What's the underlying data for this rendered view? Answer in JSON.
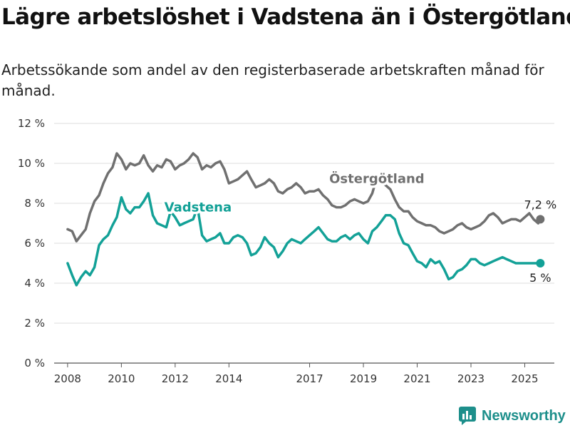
{
  "header": {
    "title": "Lägre arbetslöshet i Vadstena än i Östergötland",
    "subtitle": "Arbetssökande som andel av den registerbaserade arbetskraften månad för månad."
  },
  "brand": {
    "name": "Newsworthy",
    "icon": "newsworthy-logo-icon",
    "color": "#1d8f8b"
  },
  "chart_data": {
    "type": "line",
    "title": "",
    "xlabel": "",
    "ylabel": "",
    "xlim": [
      2007.5,
      2026.1
    ],
    "ylim": [
      0,
      12
    ],
    "y_ticks": [
      0,
      2,
      4,
      6,
      8,
      10,
      12
    ],
    "y_tick_labels": [
      "0 %",
      "2 %",
      "4 %",
      "6 %",
      "8 %",
      "10 %",
      "12 %"
    ],
    "x_ticks": [
      2008,
      2010,
      2012,
      2014,
      2017,
      2019,
      2021,
      2023,
      2025
    ],
    "x_tick_labels": [
      "2008",
      "2010",
      "2012",
      "2014",
      "2017",
      "2019",
      "2021",
      "2023",
      "2025"
    ],
    "grid": "horizontal",
    "legend": "inline labels",
    "series": [
      {
        "name": "Östergötland",
        "color": "#707070",
        "end_label": "7,2 %",
        "x": [
          2008.0,
          2008.17,
          2008.33,
          2008.5,
          2008.67,
          2008.83,
          2009.0,
          2009.17,
          2009.33,
          2009.5,
          2009.67,
          2009.83,
          2010.0,
          2010.17,
          2010.33,
          2010.5,
          2010.67,
          2010.83,
          2011.0,
          2011.17,
          2011.33,
          2011.5,
          2011.67,
          2011.83,
          2012.0,
          2012.17,
          2012.33,
          2012.5,
          2012.67,
          2012.83,
          2013.0,
          2013.17,
          2013.33,
          2013.5,
          2013.67,
          2013.83,
          2014.0,
          2014.17,
          2014.33,
          2014.5,
          2014.67,
          2014.83,
          2015.0,
          2015.17,
          2015.33,
          2015.5,
          2015.67,
          2015.83,
          2016.0,
          2016.17,
          2016.33,
          2016.5,
          2016.67,
          2016.83,
          2017.0,
          2017.17,
          2017.33,
          2017.5,
          2017.67,
          2017.83,
          2018.0,
          2018.17,
          2018.33,
          2018.5,
          2018.67,
          2018.83,
          2019.0,
          2019.17,
          2019.33,
          2019.5,
          2019.67,
          2019.83,
          2020.0,
          2020.17,
          2020.33,
          2020.5,
          2020.67,
          2020.83,
          2021.0,
          2021.17,
          2021.33,
          2021.5,
          2021.67,
          2021.83,
          2022.0,
          2022.17,
          2022.33,
          2022.5,
          2022.67,
          2022.83,
          2023.0,
          2023.17,
          2023.33,
          2023.5,
          2023.67,
          2023.83,
          2024.0,
          2024.17,
          2024.33,
          2024.5,
          2024.67,
          2024.83,
          2025.0,
          2025.17,
          2025.33,
          2025.5,
          2025.58
        ],
        "values": [
          6.7,
          6.6,
          6.1,
          6.4,
          6.7,
          7.5,
          8.1,
          8.4,
          9.0,
          9.5,
          9.8,
          10.5,
          10.2,
          9.7,
          10.0,
          9.9,
          10.0,
          10.4,
          9.9,
          9.6,
          9.9,
          9.8,
          10.2,
          10.1,
          9.7,
          9.9,
          10.0,
          10.2,
          10.5,
          10.3,
          9.7,
          9.9,
          9.8,
          10.0,
          10.1,
          9.7,
          9.0,
          9.1,
          9.2,
          9.4,
          9.6,
          9.2,
          8.8,
          8.9,
          9.0,
          9.2,
          9.0,
          8.6,
          8.5,
          8.7,
          8.8,
          9.0,
          8.8,
          8.5,
          8.6,
          8.6,
          8.7,
          8.4,
          8.2,
          7.9,
          7.8,
          7.8,
          7.9,
          8.1,
          8.2,
          8.1,
          8.0,
          8.1,
          8.5,
          9.3,
          9.1,
          8.9,
          8.7,
          8.2,
          7.8,
          7.6,
          7.6,
          7.3,
          7.1,
          7.0,
          6.9,
          6.9,
          6.8,
          6.6,
          6.5,
          6.6,
          6.7,
          6.9,
          7.0,
          6.8,
          6.7,
          6.8,
          6.9,
          7.1,
          7.4,
          7.5,
          7.3,
          7.0,
          7.1,
          7.2,
          7.2,
          7.1,
          7.3,
          7.5,
          7.2,
          7.0,
          7.2
        ],
        "label_bg_start": 2018.1,
        "label_bg_end": 2020.9
      },
      {
        "name": "Vadstena",
        "color": "#13a197",
        "end_label": "5 %",
        "x": [
          2008.0,
          2008.17,
          2008.33,
          2008.5,
          2008.67,
          2008.83,
          2009.0,
          2009.17,
          2009.33,
          2009.5,
          2009.67,
          2009.83,
          2010.0,
          2010.17,
          2010.33,
          2010.5,
          2010.67,
          2010.83,
          2011.0,
          2011.17,
          2011.33,
          2011.5,
          2011.67,
          2011.83,
          2012.0,
          2012.17,
          2012.33,
          2012.5,
          2012.67,
          2012.83,
          2013.0,
          2013.17,
          2013.33,
          2013.5,
          2013.67,
          2013.83,
          2014.0,
          2014.17,
          2014.33,
          2014.5,
          2014.67,
          2014.83,
          2015.0,
          2015.17,
          2015.33,
          2015.5,
          2015.67,
          2015.83,
          2016.0,
          2016.17,
          2016.33,
          2016.5,
          2016.67,
          2016.83,
          2017.0,
          2017.17,
          2017.33,
          2017.5,
          2017.67,
          2017.83,
          2018.0,
          2018.17,
          2018.33,
          2018.5,
          2018.67,
          2018.83,
          2019.0,
          2019.17,
          2019.33,
          2019.5,
          2019.67,
          2019.83,
          2020.0,
          2020.17,
          2020.33,
          2020.5,
          2020.67,
          2020.83,
          2021.0,
          2021.17,
          2021.33,
          2021.5,
          2021.67,
          2021.83,
          2022.0,
          2022.17,
          2022.33,
          2022.5,
          2022.67,
          2022.83,
          2023.0,
          2023.17,
          2023.33,
          2023.5,
          2023.67,
          2023.83,
          2024.0,
          2024.17,
          2024.33,
          2024.5,
          2024.67,
          2024.83,
          2025.0,
          2025.17,
          2025.33,
          2025.5,
          2025.58
        ],
        "values": [
          5.0,
          4.4,
          3.9,
          4.3,
          4.6,
          4.4,
          4.8,
          5.9,
          6.2,
          6.4,
          6.9,
          7.3,
          8.3,
          7.7,
          7.5,
          7.8,
          7.8,
          8.1,
          8.5,
          7.4,
          7.0,
          6.9,
          6.8,
          7.6,
          7.3,
          6.9,
          7.0,
          7.1,
          7.2,
          7.8,
          6.4,
          6.1,
          6.2,
          6.3,
          6.5,
          6.0,
          6.0,
          6.3,
          6.4,
          6.3,
          6.0,
          5.4,
          5.5,
          5.8,
          6.3,
          6.0,
          5.8,
          5.3,
          5.6,
          6.0,
          6.2,
          6.1,
          6.0,
          6.2,
          6.4,
          6.6,
          6.8,
          6.5,
          6.2,
          6.1,
          6.1,
          6.3,
          6.4,
          6.2,
          6.4,
          6.5,
          6.2,
          6.0,
          6.6,
          6.8,
          7.1,
          7.4,
          7.4,
          7.2,
          6.5,
          6.0,
          5.9,
          5.5,
          5.1,
          5.0,
          4.8,
          5.2,
          5.0,
          5.1,
          4.7,
          4.2,
          4.3,
          4.6,
          4.7,
          4.9,
          5.2,
          5.2,
          5.0,
          4.9,
          5.0,
          5.1,
          5.2,
          5.3,
          5.2,
          5.1,
          5.0,
          5.0,
          5.0,
          5.0,
          5.0,
          5.0,
          5.0
        ],
        "label_bg_start": 2012.4,
        "label_bg_end": 2013.3
      }
    ]
  }
}
